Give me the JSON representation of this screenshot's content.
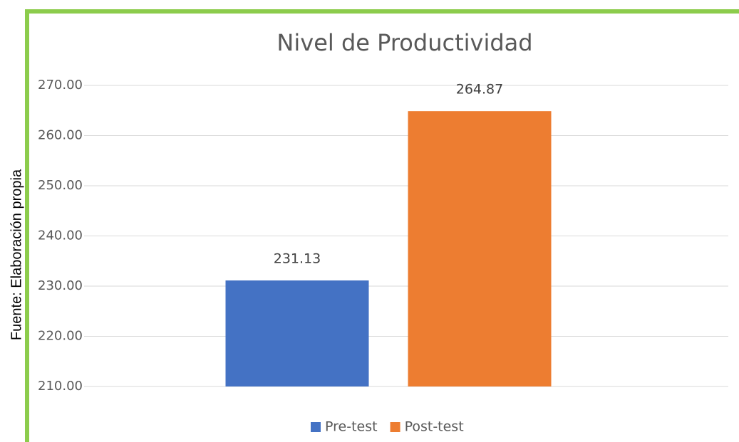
{
  "chart_data": {
    "type": "bar",
    "title": "Nivel de Productividad",
    "annotation": "Fuente: Elaboración propia",
    "categories": [
      null
    ],
    "series": [
      {
        "name": "Pre-test",
        "color": "#4472c4",
        "values": [
          231.13
        ]
      },
      {
        "name": "Post-test",
        "color": "#ed7d31",
        "values": [
          264.87
        ]
      }
    ],
    "ylim": [
      210,
      270
    ],
    "yticks": [
      {
        "value": 210,
        "label": "210.00"
      },
      {
        "value": 220,
        "label": "220.00"
      },
      {
        "value": 230,
        "label": "230.00"
      },
      {
        "value": 240,
        "label": "240.00"
      },
      {
        "value": 250,
        "label": "250.00"
      },
      {
        "value": 260,
        "label": "260.00"
      },
      {
        "value": 270,
        "label": "270.00"
      }
    ],
    "grid": true,
    "legend": "bottom"
  }
}
